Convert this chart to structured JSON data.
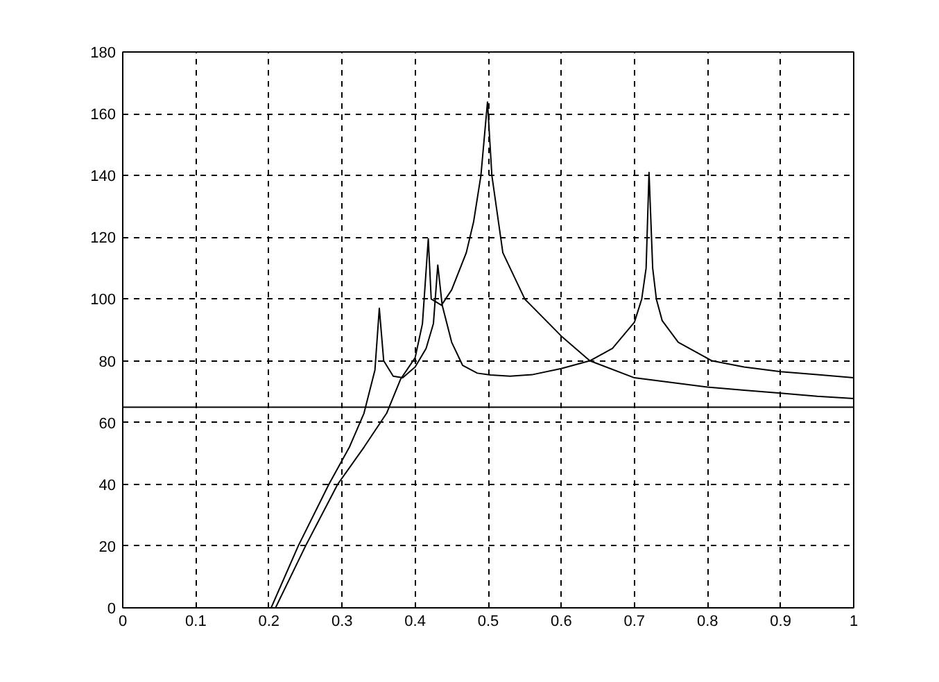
{
  "chart_data": {
    "type": "line",
    "xlim": [
      0,
      1
    ],
    "ylim": [
      0,
      180
    ],
    "xticks": [
      0,
      0.1,
      0.2,
      0.3,
      0.4,
      0.5,
      0.6,
      0.7,
      0.8,
      0.9,
      1
    ],
    "yticks": [
      0,
      20,
      40,
      60,
      80,
      100,
      120,
      140,
      160,
      180
    ],
    "grid": true,
    "line_style": "solid",
    "marker": "none",
    "series": [
      {
        "color": "#000000",
        "x": [
          0,
          0.2,
          0.203,
          0.24,
          0.282,
          0.31,
          0.33,
          0.345,
          0.351,
          0.357,
          0.37,
          0.383,
          0.4,
          0.415,
          0.425,
          0.431,
          0.437,
          0.45,
          0.465,
          0.485,
          0.503,
          0.53,
          0.56,
          0.6,
          0.639,
          0.67,
          0.7,
          0.71,
          0.716,
          0.72,
          0.725,
          0.73,
          0.738,
          0.76,
          0.806,
          0.85,
          0.9,
          0.95,
          1.0
        ],
        "values": [
          0,
          0,
          0,
          20,
          40,
          52,
          63,
          77,
          97,
          80,
          75,
          74.5,
          78,
          84,
          92,
          111,
          98,
          86,
          78.5,
          76,
          75.4,
          75,
          75.5,
          77.5,
          80,
          84,
          92.5,
          100,
          110,
          141,
          110,
          100,
          93,
          86,
          80,
          78,
          76.5,
          75.5,
          74.5
        ]
      },
      {
        "color": "#000000",
        "x": [
          0,
          0.2,
          0.209,
          0.25,
          0.294,
          0.33,
          0.361,
          0.38,
          0.4,
          0.41,
          0.418,
          0.422,
          0.436,
          0.45,
          0.47,
          0.48,
          0.49,
          0.499,
          0.505,
          0.52,
          0.55,
          0.6,
          0.639,
          0.7,
          0.75,
          0.8,
          0.85,
          0.9,
          0.95,
          1.0
        ],
        "values": [
          0,
          0,
          0,
          20,
          40,
          52,
          63,
          74,
          81,
          92,
          119.5,
          100,
          98,
          103,
          115,
          125,
          140,
          163.8,
          140,
          115,
          100,
          88,
          80,
          74.5,
          73,
          71.5,
          70.5,
          69.5,
          68.5,
          67.8
        ]
      }
    ],
    "ref_lines": [
      {
        "axis": "y",
        "value": 65,
        "color": "#000000",
        "line_style": "solid"
      }
    ]
  }
}
